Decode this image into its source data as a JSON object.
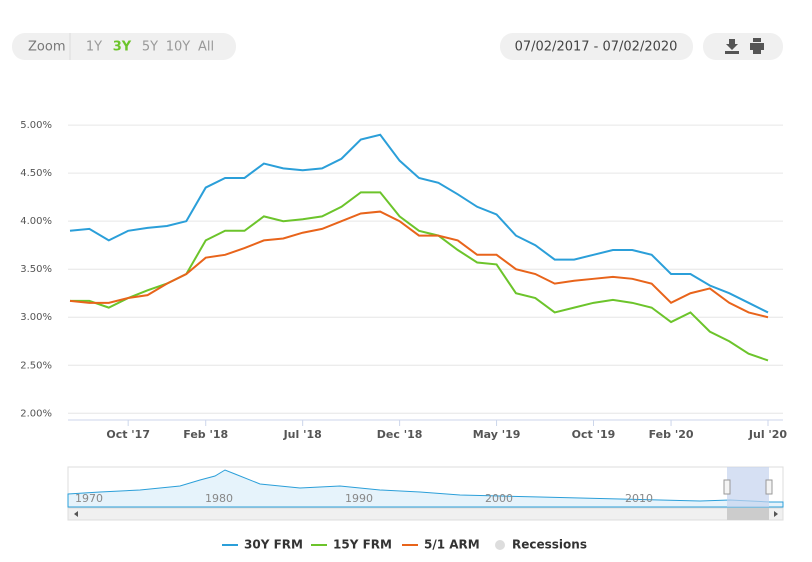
{
  "chart_data": {
    "type": "line",
    "range_selector": {
      "label": "Zoom",
      "buttons": [
        "1Y",
        "3Y",
        "5Y",
        "10Y",
        "All"
      ],
      "selected": 1
    },
    "date_range": "07/02/2017 - 07/02/2020",
    "x": [
      "2017-07",
      "2017-08",
      "2017-09",
      "2017-10",
      "2017-11",
      "2017-12",
      "2018-01",
      "2018-02",
      "2018-03",
      "2018-04",
      "2018-05",
      "2018-06",
      "2018-07",
      "2018-08",
      "2018-09",
      "2018-10",
      "2018-11",
      "2018-12",
      "2019-01",
      "2019-02",
      "2019-03",
      "2019-04",
      "2019-05",
      "2019-06",
      "2019-07",
      "2019-08",
      "2019-09",
      "2019-10",
      "2019-11",
      "2019-12",
      "2020-01",
      "2020-02",
      "2020-03",
      "2020-04",
      "2020-05",
      "2020-06",
      "2020-07"
    ],
    "xlim": [
      "2017-07",
      "2020-07"
    ],
    "xticks": [
      {
        "value": "2017-10",
        "label": "Oct '17"
      },
      {
        "value": "2018-02",
        "label": "Feb '18"
      },
      {
        "value": "2018-07",
        "label": "Jul '18"
      },
      {
        "value": "2018-12",
        "label": "Dec '18"
      },
      {
        "value": "2019-05",
        "label": "May '19"
      },
      {
        "value": "2019-10",
        "label": "Oct '19"
      },
      {
        "value": "2020-02",
        "label": "Feb '20"
      },
      {
        "value": "2020-07",
        "label": "Jul '20"
      }
    ],
    "ylim": [
      1.93,
      5.47
    ],
    "yticks": [
      {
        "value": 2,
        "label": "2.00%"
      },
      {
        "value": 2.5,
        "label": "2.50%"
      },
      {
        "value": 3,
        "label": "3.00%"
      },
      {
        "value": 3.5,
        "label": "3.50%"
      },
      {
        "value": 4,
        "label": "4.00%"
      },
      {
        "value": 4.5,
        "label": "4.50%"
      },
      {
        "value": 5,
        "label": "5.00%"
      }
    ],
    "grid": true,
    "series": [
      {
        "name": "30Y FRM",
        "color": "#2b9fd9",
        "values": [
          3.9,
          3.92,
          3.8,
          3.9,
          3.93,
          3.95,
          4.0,
          4.35,
          4.45,
          4.45,
          4.6,
          4.55,
          4.53,
          4.55,
          4.65,
          4.85,
          4.9,
          4.63,
          4.45,
          4.4,
          4.28,
          4.15,
          4.07,
          3.85,
          3.75,
          3.6,
          3.6,
          3.65,
          3.7,
          3.7,
          3.65,
          3.45,
          3.45,
          3.33,
          3.25,
          3.15,
          3.05
        ]
      },
      {
        "name": "15Y FRM",
        "color": "#6cc42b",
        "values": [
          3.17,
          3.17,
          3.1,
          3.2,
          3.28,
          3.35,
          3.45,
          3.8,
          3.9,
          3.9,
          4.05,
          4.0,
          4.02,
          4.05,
          4.15,
          4.3,
          4.3,
          4.05,
          3.9,
          3.85,
          3.7,
          3.57,
          3.55,
          3.25,
          3.2,
          3.05,
          3.1,
          3.15,
          3.18,
          3.15,
          3.1,
          2.95,
          3.05,
          2.85,
          2.75,
          2.62,
          2.55
        ]
      },
      {
        "name": "5/1 ARM",
        "color": "#e8641b",
        "values": [
          3.17,
          3.15,
          3.15,
          3.2,
          3.23,
          3.35,
          3.45,
          3.62,
          3.65,
          3.72,
          3.8,
          3.82,
          3.88,
          3.92,
          4.0,
          4.08,
          4.1,
          4.0,
          3.85,
          3.85,
          3.8,
          3.65,
          3.65,
          3.5,
          3.45,
          3.35,
          3.38,
          3.4,
          3.42,
          3.4,
          3.35,
          3.15,
          3.25,
          3.3,
          3.15,
          3.05,
          3.0
        ]
      }
    ],
    "recessions_label": "Recessions",
    "navigator_labels": [
      "1970",
      "1980",
      "1990",
      "2000",
      "2010"
    ]
  }
}
